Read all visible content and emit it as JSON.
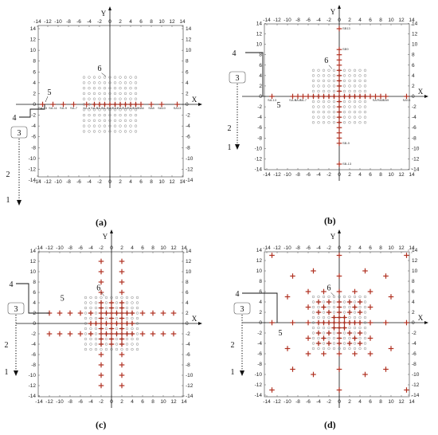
{
  "axes": {
    "x_name": "X",
    "y_name": "Y",
    "ticks": [
      -14,
      -12,
      -10,
      -8,
      -6,
      -4,
      -2,
      0,
      2,
      4,
      6,
      8,
      10,
      12,
      14
    ]
  },
  "callouts": [
    "1",
    "2",
    "3",
    "4",
    "5",
    "6"
  ],
  "colors": {
    "sensor_mark": "#b03020",
    "grid_circle": "#777777",
    "axis": "#111111",
    "frame": "#555555"
  },
  "panels": [
    {
      "id": "a",
      "caption": "(a)",
      "description_points_x": [
        -13,
        -11,
        -9,
        -7,
        -4.5,
        -3,
        -2,
        -1,
        0,
        1,
        2,
        3,
        4,
        5,
        6,
        8,
        10,
        13
      ],
      "point_labels": [
        "SA-13",
        "SA-11",
        "SA-9",
        "SA-7",
        "SA-5",
        "SA-3",
        "SA-2",
        "SA-1",
        "SA0",
        "SA1",
        "SA2",
        "SA3",
        "SA4",
        "SA5",
        "SA6",
        "SA8",
        "SA10",
        "SA13"
      ]
    },
    {
      "id": "b",
      "caption": "(b)",
      "point_labels": [
        "SA-13",
        "SA-9",
        "SA-8",
        "SA-7",
        "SA7",
        "SA8",
        "SA9",
        "SA13",
        "SB13",
        "SB9",
        "SB-9",
        "SB-13"
      ]
    },
    {
      "id": "c",
      "caption": "(c)"
    },
    {
      "id": "d",
      "caption": "(d)"
    }
  ]
}
